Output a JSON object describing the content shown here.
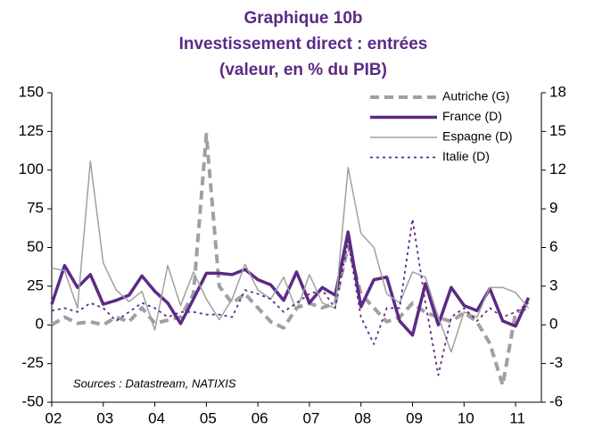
{
  "chart_data": {
    "type": "line",
    "title": [
      "Graphique 10b",
      "Investissement direct : entrées",
      "(valeur, en % du PIB)"
    ],
    "annotation": "Sources : Datastream, NATIXIS",
    "x": [
      2002,
      2002.25,
      2002.5,
      2002.75,
      2003,
      2003.25,
      2003.5,
      2003.75,
      2004,
      2004.25,
      2004.5,
      2004.75,
      2005,
      2005.25,
      2005.5,
      2005.75,
      2006,
      2006.25,
      2006.5,
      2006.75,
      2007,
      2007.25,
      2007.5,
      2007.75,
      2008,
      2008.25,
      2008.5,
      2008.75,
      2009,
      2009.25,
      2009.5,
      2009.75,
      2010,
      2010.25,
      2010.5,
      2010.75,
      2011,
      2011.25
    ],
    "xlim": [
      2002,
      2011.5
    ],
    "xticks": [
      {
        "value": 2002,
        "label": "02"
      },
      {
        "value": 2003,
        "label": "03"
      },
      {
        "value": 2004,
        "label": "04"
      },
      {
        "value": 2005,
        "label": "05"
      },
      {
        "value": 2006,
        "label": "06"
      },
      {
        "value": 2007,
        "label": "07"
      },
      {
        "value": 2008,
        "label": "08"
      },
      {
        "value": 2009,
        "label": "09"
      },
      {
        "value": 2010,
        "label": "10"
      },
      {
        "value": 2011,
        "label": "11"
      }
    ],
    "ylim": [
      -50,
      150
    ],
    "yticks": [
      -50,
      -25,
      0,
      25,
      50,
      75,
      100,
      125,
      150
    ],
    "y2lim": [
      -6,
      18
    ],
    "y2ticks": [
      -6,
      -3,
      0,
      3,
      6,
      9,
      12,
      15,
      18
    ],
    "series": [
      {
        "name": "Autriche (G)",
        "color": "#a0a0a0",
        "style": "dashed",
        "width": 4,
        "axis": "y",
        "values": [
          0,
          5,
          1,
          2,
          0,
          5,
          2,
          11,
          1,
          3,
          5,
          20,
          123,
          25,
          14,
          20,
          11,
          2,
          -2,
          11,
          14,
          11,
          14,
          51,
          20,
          11,
          2,
          5,
          14,
          8,
          5,
          2,
          8,
          2,
          -12,
          -39,
          8,
          11
        ]
      },
      {
        "name": "France (D)",
        "color": "#5b2a86",
        "style": "solid",
        "width": 3.5,
        "axis": "y2",
        "values": [
          1.6,
          4.6,
          2.9,
          3.9,
          1.6,
          1.9,
          2.3,
          3.8,
          2.6,
          1.7,
          0.1,
          2.0,
          4.0,
          4.0,
          3.9,
          4.3,
          3.5,
          3.1,
          1.9,
          4.1,
          1.7,
          2.9,
          2.3,
          7.2,
          1.4,
          3.5,
          3.7,
          0.3,
          -0.8,
          3.2,
          0,
          2.9,
          1.5,
          1.1,
          2.8,
          0.3,
          -0.1,
          2.1
        ]
      },
      {
        "name": "Espagne (D)",
        "color": "#a0a0a0",
        "style": "solid",
        "width": 1.5,
        "axis": "y2",
        "values": [
          4.4,
          4.2,
          1.3,
          12.7,
          4.8,
          2.7,
          1.8,
          2.6,
          -0.4,
          4.6,
          1.5,
          4.1,
          2.0,
          0.4,
          2.0,
          4.7,
          2.7,
          2.0,
          3.7,
          1.1,
          3.9,
          1.7,
          1.3,
          12.2,
          7.1,
          6.0,
          2.4,
          1.7,
          4.1,
          3.7,
          0.6,
          -2.1,
          1.0,
          0.6,
          2.9,
          2.9,
          2.5,
          1.3
        ]
      },
      {
        "name": "Italie (D)",
        "color": "#5b2a86",
        "style": "dotted",
        "width": 1.8,
        "axis": "y2",
        "values": [
          1.1,
          1.3,
          1.0,
          1.7,
          1.3,
          0.3,
          1.0,
          1.7,
          1.3,
          0.6,
          1.0,
          1.0,
          0.8,
          0.8,
          0.6,
          2.7,
          2.4,
          2.0,
          1.0,
          1.7,
          2.4,
          2.7,
          1.3,
          6.5,
          0.6,
          -1.5,
          1.3,
          1.3,
          8.2,
          1.7,
          -3.9,
          0.6,
          1.3,
          0.3,
          1.3,
          0.6,
          1.0,
          1.7
        ]
      }
    ]
  }
}
